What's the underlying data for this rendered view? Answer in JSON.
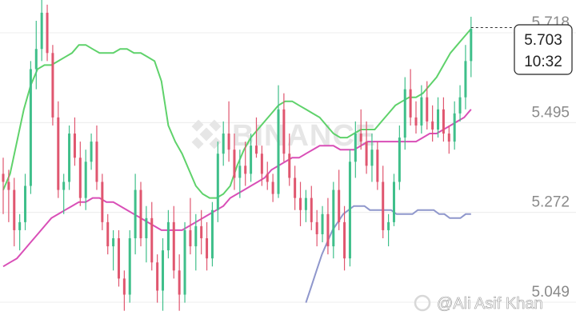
{
  "watermark": {
    "brand": "BINANCE",
    "author": "@Ali Asif Khan"
  },
  "price_box": {
    "price": "5.703",
    "time": "10:32"
  },
  "chart_data": {
    "type": "candlestick",
    "y_ticks": [
      "5.718",
      "5.495",
      "5.272",
      "5.049"
    ],
    "ylim": [
      4.98,
      5.78
    ],
    "grid": "horizontal",
    "last_price": 5.703,
    "colors": {
      "up": "#3fbf8a",
      "down": "#e0566f",
      "upper_band": "#5fd26b",
      "lower_band": "#8f97cc",
      "moving_average": "#d94fb7"
    },
    "candles": [
      [
        5.34,
        5.38,
        5.24,
        5.32
      ],
      [
        5.32,
        5.35,
        5.22,
        5.3
      ],
      [
        5.3,
        5.33,
        5.16,
        5.2
      ],
      [
        5.2,
        5.24,
        5.15,
        5.22
      ],
      [
        5.22,
        5.34,
        5.2,
        5.31
      ],
      [
        5.31,
        5.62,
        5.29,
        5.6
      ],
      [
        5.6,
        5.72,
        5.55,
        5.65
      ],
      [
        5.65,
        5.78,
        5.62,
        5.74
      ],
      [
        5.74,
        5.76,
        5.62,
        5.64
      ],
      [
        5.64,
        5.66,
        5.46,
        5.48
      ],
      [
        5.48,
        5.52,
        5.28,
        5.3
      ],
      [
        5.3,
        5.34,
        5.24,
        5.32
      ],
      [
        5.32,
        5.46,
        5.3,
        5.44
      ],
      [
        5.44,
        5.48,
        5.36,
        5.38
      ],
      [
        5.38,
        5.42,
        5.26,
        5.28
      ],
      [
        5.28,
        5.4,
        5.25,
        5.37
      ],
      [
        5.37,
        5.44,
        5.35,
        5.42
      ],
      [
        5.42,
        5.46,
        5.3,
        5.32
      ],
      [
        5.32,
        5.34,
        5.2,
        5.22
      ],
      [
        5.22,
        5.24,
        5.14,
        5.16
      ],
      [
        5.16,
        5.2,
        5.1,
        5.18
      ],
      [
        5.18,
        5.2,
        5.06,
        5.08
      ],
      [
        5.08,
        5.1,
        5.0,
        5.04
      ],
      [
        5.04,
        5.2,
        5.02,
        5.18
      ],
      [
        5.18,
        5.34,
        5.14,
        5.3
      ],
      [
        5.3,
        5.32,
        5.16,
        5.18
      ],
      [
        5.18,
        5.26,
        5.12,
        5.23
      ],
      [
        5.23,
        5.27,
        5.1,
        5.12
      ],
      [
        5.12,
        5.14,
        5.02,
        5.05
      ],
      [
        5.05,
        5.18,
        5.0,
        5.15
      ],
      [
        5.15,
        5.25,
        5.13,
        5.22
      ],
      [
        5.22,
        5.26,
        5.08,
        5.1
      ],
      [
        5.1,
        5.14,
        5.0,
        5.04
      ],
      [
        5.04,
        5.22,
        5.02,
        5.2
      ],
      [
        5.2,
        5.28,
        5.14,
        5.16
      ],
      [
        5.16,
        5.24,
        5.1,
        5.21
      ],
      [
        5.21,
        5.25,
        5.14,
        5.18
      ],
      [
        5.18,
        5.22,
        5.1,
        5.13
      ],
      [
        5.13,
        5.27,
        5.11,
        5.25
      ],
      [
        5.25,
        5.42,
        5.22,
        5.39
      ],
      [
        5.39,
        5.47,
        5.36,
        5.44
      ],
      [
        5.44,
        5.52,
        5.37,
        5.4
      ],
      [
        5.4,
        5.44,
        5.3,
        5.33
      ],
      [
        5.33,
        5.4,
        5.28,
        5.36
      ],
      [
        5.36,
        5.42,
        5.31,
        5.34
      ],
      [
        5.34,
        5.44,
        5.32,
        5.41
      ],
      [
        5.41,
        5.48,
        5.38,
        5.39
      ],
      [
        5.39,
        5.41,
        5.31,
        5.34
      ],
      [
        5.34,
        5.37,
        5.3,
        5.32
      ],
      [
        5.32,
        5.34,
        5.27,
        5.29
      ],
      [
        5.29,
        5.56,
        5.28,
        5.5
      ],
      [
        5.5,
        5.54,
        5.37,
        5.39
      ],
      [
        5.39,
        5.44,
        5.31,
        5.33
      ],
      [
        5.33,
        5.36,
        5.25,
        5.28
      ],
      [
        5.28,
        5.32,
        5.21,
        5.25
      ],
      [
        5.25,
        5.3,
        5.22,
        5.28
      ],
      [
        5.28,
        5.31,
        5.2,
        5.22
      ],
      [
        5.22,
        5.25,
        5.16,
        5.19
      ],
      [
        5.19,
        5.26,
        5.17,
        5.24
      ],
      [
        5.24,
        5.28,
        5.14,
        5.16
      ],
      [
        5.16,
        5.32,
        5.13,
        5.3
      ],
      [
        5.3,
        5.35,
        5.2,
        5.22
      ],
      [
        5.22,
        5.26,
        5.1,
        5.13
      ],
      [
        5.13,
        5.4,
        5.11,
        5.37
      ],
      [
        5.37,
        5.47,
        5.33,
        5.44
      ],
      [
        5.44,
        5.5,
        5.4,
        5.42
      ],
      [
        5.42,
        5.47,
        5.34,
        5.36
      ],
      [
        5.36,
        5.44,
        5.32,
        5.4
      ],
      [
        5.4,
        5.42,
        5.3,
        5.32
      ],
      [
        5.32,
        5.36,
        5.18,
        5.2
      ],
      [
        5.2,
        5.24,
        5.16,
        5.22
      ],
      [
        5.22,
        5.34,
        5.21,
        5.32
      ],
      [
        5.32,
        5.46,
        5.3,
        5.43
      ],
      [
        5.43,
        5.58,
        5.4,
        5.55
      ],
      [
        5.55,
        5.6,
        5.46,
        5.48
      ],
      [
        5.48,
        5.52,
        5.44,
        5.46
      ],
      [
        5.46,
        5.56,
        5.44,
        5.53
      ],
      [
        5.53,
        5.57,
        5.45,
        5.47
      ],
      [
        5.47,
        5.51,
        5.42,
        5.45
      ],
      [
        5.45,
        5.53,
        5.43,
        5.5
      ],
      [
        5.5,
        5.53,
        5.42,
        5.44
      ],
      [
        5.44,
        5.46,
        5.39,
        5.42
      ],
      [
        5.42,
        5.52,
        5.4,
        5.49
      ],
      [
        5.49,
        5.56,
        5.47,
        5.53
      ],
      [
        5.53,
        5.66,
        5.5,
        5.62
      ],
      [
        5.62,
        5.73,
        5.58,
        5.7
      ]
    ],
    "upper_band": [
      5.3,
      5.34,
      5.42,
      5.5,
      5.56,
      5.6,
      5.61,
      5.61,
      5.62,
      5.63,
      5.64,
      5.66,
      5.66,
      5.65,
      5.64,
      5.64,
      5.64,
      5.65,
      5.65,
      5.64,
      5.64,
      5.63,
      5.62,
      5.57,
      5.46,
      5.42,
      5.39,
      5.35,
      5.31,
      5.29,
      5.28,
      5.28,
      5.29,
      5.31,
      5.36,
      5.4,
      5.43,
      5.45,
      5.47,
      5.49,
      5.51,
      5.52,
      5.52,
      5.51,
      5.5,
      5.49,
      5.48,
      5.46,
      5.44,
      5.43,
      5.43,
      5.44,
      5.45,
      5.45,
      5.45,
      5.47,
      5.49,
      5.51,
      5.52,
      5.53,
      5.53,
      5.54,
      5.56,
      5.58,
      5.61,
      5.64,
      5.66,
      5.68,
      5.7
    ],
    "moving_average": [
      5.11,
      5.12,
      5.13,
      5.15,
      5.17,
      5.19,
      5.21,
      5.23,
      5.24,
      5.25,
      5.26,
      5.27,
      5.27,
      5.28,
      5.28,
      5.27,
      5.27,
      5.26,
      5.25,
      5.24,
      5.23,
      5.22,
      5.21,
      5.2,
      5.2,
      5.2,
      5.2,
      5.21,
      5.22,
      5.23,
      5.24,
      5.25,
      5.26,
      5.28,
      5.29,
      5.3,
      5.31,
      5.32,
      5.33,
      5.35,
      5.36,
      5.37,
      5.38,
      5.38,
      5.39,
      5.4,
      5.41,
      5.41,
      5.41,
      5.4,
      5.4,
      5.4,
      5.41,
      5.42,
      5.42,
      5.42,
      5.42,
      5.42,
      5.42,
      5.42,
      5.42,
      5.43,
      5.44,
      5.44,
      5.45,
      5.46,
      5.47,
      5.48,
      5.5
    ],
    "lower_band": [
      5.02,
      5.06,
      5.1,
      5.14,
      5.17,
      5.2,
      5.22,
      5.24,
      5.25,
      5.26,
      5.26,
      5.26,
      5.25,
      5.25,
      5.25,
      5.25,
      5.25,
      5.24,
      5.24,
      5.24,
      5.24,
      5.25,
      5.25,
      5.25,
      5.25,
      5.24,
      5.24,
      5.23,
      5.23,
      5.23,
      5.24,
      5.24
    ]
  }
}
